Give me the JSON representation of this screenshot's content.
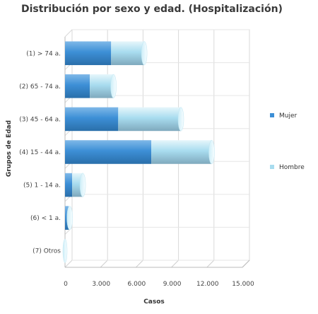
{
  "chart_data": {
    "type": "bar",
    "orientation": "horizontal",
    "stacked": true,
    "title": "Distribución por sexo y edad. (Hospitalización)",
    "xlabel": "Casos",
    "ylabel": "Grupos de Edad",
    "categories": [
      "(1) > 74 a.",
      "(2) 65 - 74 a.",
      "(3) 45 - 64 a.",
      "(4) 15 - 44 a.",
      "(5) 1 - 14 a.",
      "(6) < 1 a.",
      "(7) Otros"
    ],
    "series": [
      {
        "name": "Mujer",
        "color": "#3d8fd6",
        "values": [
          3900,
          2100,
          4500,
          7300,
          600,
          300,
          0
        ]
      },
      {
        "name": "Hombre",
        "color": "#a8dcef",
        "values": [
          2800,
          2000,
          5300,
          5100,
          900,
          100,
          0
        ]
      }
    ],
    "xlim": [
      0,
      15000
    ],
    "xticks": [
      0,
      3000,
      6000,
      9000,
      12000,
      15000
    ],
    "xtick_labels": [
      "0",
      "3.000",
      "6.000",
      "9.000",
      "12.000",
      "15.000"
    ],
    "grid": true,
    "legend_position": "right"
  }
}
